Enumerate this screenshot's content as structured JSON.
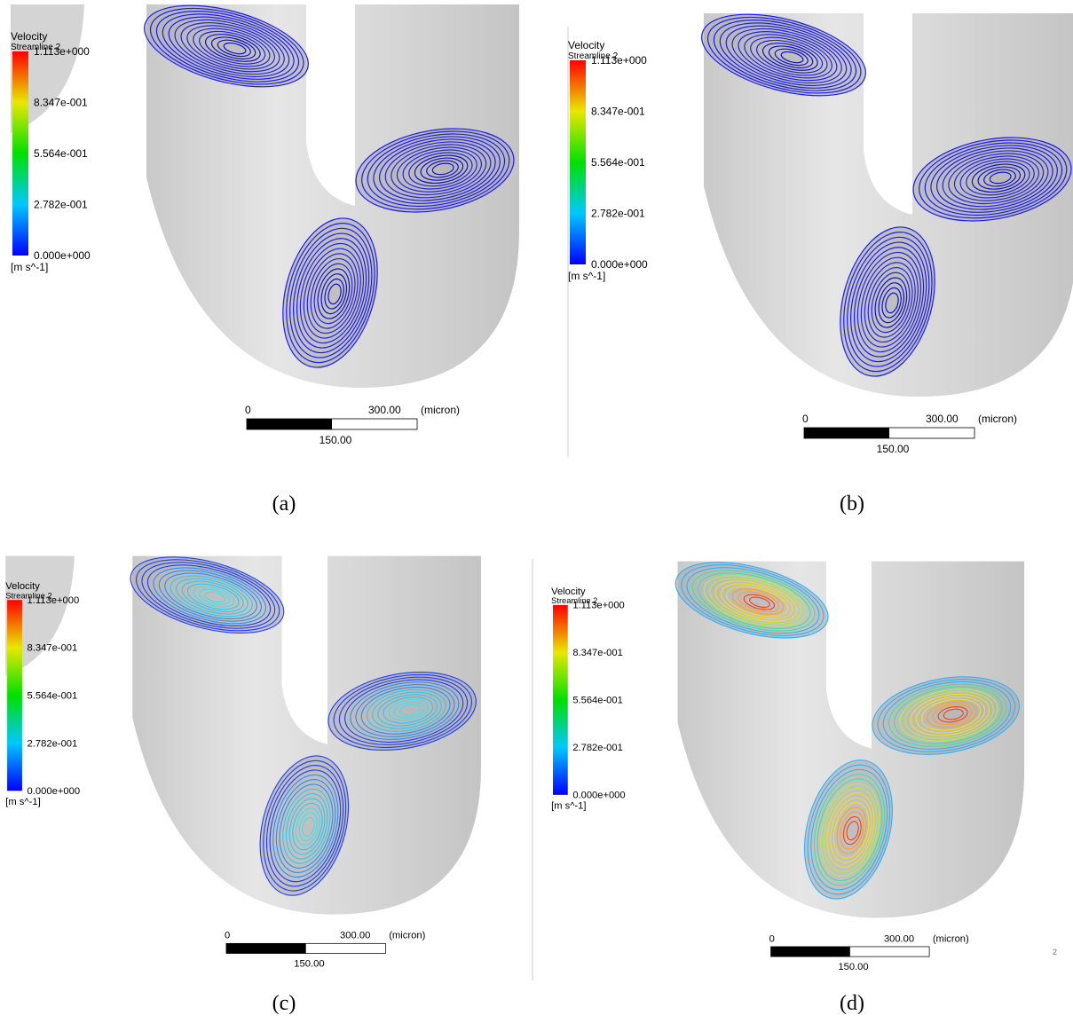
{
  "panels": [
    {
      "legend": {
        "title": "Velocity",
        "subtitle": "Streamline 2",
        "ticks": [
          "1.113e+000",
          "8.347e-001",
          "5.564e-001",
          "2.782e-001",
          "0.000e+000"
        ],
        "unit": "[m s^-1]"
      },
      "scale_bar": {
        "start": "0",
        "end": "300.00",
        "unit": "(micron)",
        "mid": "150.00"
      },
      "caption": "(a)"
    },
    {
      "legend": {
        "title": "Velocity",
        "subtitle": "Streamline 2",
        "ticks": [
          "1.113e+000",
          "8.347e-001",
          "5.564e-001",
          "2.782e-001",
          "0.000e+000"
        ],
        "unit": "[m s^-1]"
      },
      "scale_bar": {
        "start": "0",
        "end": "300.00",
        "unit": "(micron)",
        "mid": "150.00"
      },
      "caption": "(b)"
    },
    {
      "legend": {
        "title": "Velocity",
        "subtitle": "Streamline 2",
        "ticks": [
          "1.113e+000",
          "8.347e-001",
          "5.564e-001",
          "2.782e-001",
          "0.000e+000"
        ],
        "unit": "[m s^-1]"
      },
      "scale_bar": {
        "start": "0",
        "end": "300.00",
        "unit": "(micron)",
        "mid": "150.00"
      },
      "caption": "(c)"
    },
    {
      "legend": {
        "title": "Velocity",
        "subtitle": "Streamline 2",
        "ticks": [
          "1.113e+000",
          "8.347e-001",
          "5.564e-001",
          "2.782e-001",
          "0.000e+000"
        ],
        "unit": "[m s^-1]"
      },
      "scale_bar": {
        "start": "0",
        "end": "300.00",
        "unit": "(micron)",
        "mid": "150.00"
      },
      "caption": "(d)",
      "corner_mark": "2"
    }
  ]
}
